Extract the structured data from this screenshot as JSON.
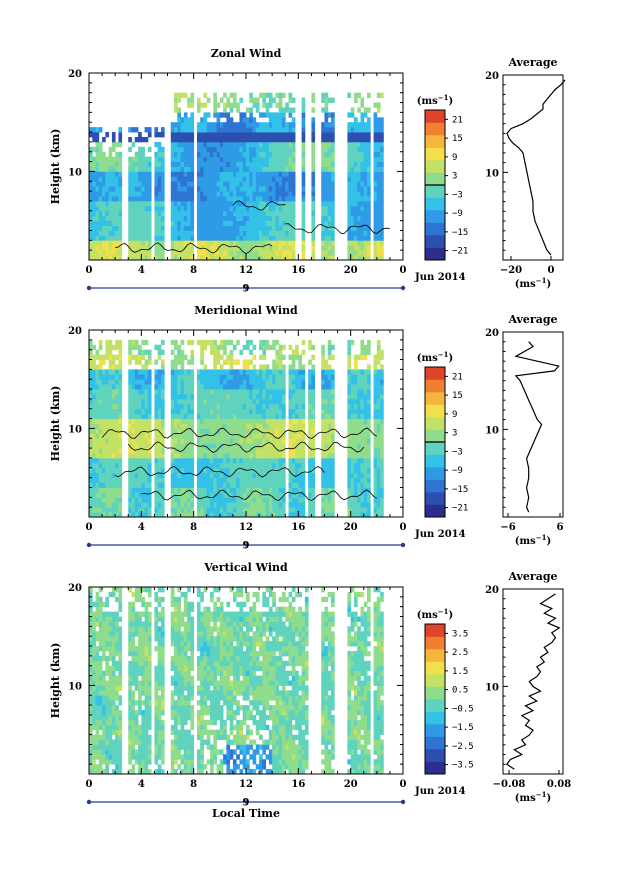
{
  "chart_data": [
    {
      "type": "heatmap",
      "title": "Zonal Wind",
      "ylabel": "Height (km)",
      "xlabel": "",
      "x_ticks": [
        "0",
        "4",
        "8",
        "12",
        "16",
        "20",
        "0"
      ],
      "y_ticks": [
        "10",
        "20"
      ],
      "ylim": [
        1,
        20
      ],
      "date_marker": "9",
      "date_label": "Jun 2014",
      "colorbar": {
        "unit_base": "(ms",
        "unit_exp": "−1",
        "ticks": [
          "21",
          "15",
          "9",
          "3",
          "−3",
          "−9",
          "−15",
          "−21"
        ],
        "range": [
          -24,
          24
        ]
      },
      "contour_value": 0,
      "average_profile": {
        "title": "Average",
        "xlim": [
          -24,
          6
        ],
        "x_ticks": [
          "−20",
          "0"
        ],
        "unit_base": "(ms",
        "unit_exp": "−1",
        "height_km": [
          1.5,
          2,
          3,
          4,
          5,
          6,
          7,
          8,
          9,
          10,
          11,
          12,
          12.5,
          13,
          13.5,
          14,
          14.5,
          15,
          15.5,
          16,
          16.5,
          17,
          17.5,
          18,
          18.5,
          19,
          19.5
        ],
        "values": [
          0,
          -2,
          -4,
          -6,
          -8,
          -9,
          -9,
          -10,
          -11,
          -12,
          -13,
          -14,
          -16,
          -19,
          -21,
          -22,
          -20,
          -14,
          -10,
          -7,
          -4,
          -4,
          -2,
          0,
          2,
          5,
          7
        ]
      }
    },
    {
      "type": "heatmap",
      "title": "Meridional Wind",
      "ylabel": "Height (km)",
      "xlabel": "",
      "x_ticks": [
        "0",
        "4",
        "8",
        "12",
        "16",
        "20",
        "0"
      ],
      "y_ticks": [
        "10",
        "20"
      ],
      "ylim": [
        1,
        20
      ],
      "date_marker": "9",
      "date_label": "Jun 2014",
      "colorbar": {
        "unit_base": "(ms",
        "unit_exp": "−1",
        "ticks": [
          "21",
          "15",
          "9",
          "3",
          "−3",
          "−9",
          "−15",
          "−21"
        ],
        "range": [
          -24,
          24
        ]
      },
      "contour_value": 0,
      "average_profile": {
        "title": "Average",
        "xlim": [
          -8,
          6
        ],
        "x_ticks": [
          "−6",
          "6"
        ],
        "unit_base": "(ms",
        "unit_exp": "−1",
        "height_km": [
          1.5,
          2,
          3,
          4,
          5,
          6,
          7,
          8,
          9,
          10,
          10.5,
          11,
          12,
          13,
          14,
          15,
          15.5,
          16,
          16.5,
          17,
          17.5,
          18,
          18.5,
          19
        ],
        "values": [
          -2,
          -2.5,
          -2,
          -2.5,
          -2,
          -2,
          -2.5,
          -1.5,
          -0.5,
          0.5,
          1,
          0,
          -1,
          -2,
          -3,
          -4,
          -5,
          4,
          5,
          0,
          -5,
          -3,
          -1,
          -2
        ]
      }
    },
    {
      "type": "heatmap",
      "title": "Vertical Wind",
      "ylabel": "Height (km)",
      "xlabel": "Local Time",
      "x_ticks": [
        "0",
        "4",
        "8",
        "12",
        "16",
        "20",
        "0"
      ],
      "y_ticks": [
        "10",
        "20"
      ],
      "ylim": [
        1,
        20
      ],
      "date_marker": "9",
      "date_label": "Jun 2014",
      "colorbar": {
        "unit_base": "(ms",
        "unit_exp": "−1",
        "ticks": [
          "3.5",
          "2.5",
          "1.5",
          "0.5",
          "−0.5",
          "−1.5",
          "−2.5",
          "−3.5"
        ],
        "range": [
          -4,
          4
        ]
      },
      "average_profile": {
        "title": "Average",
        "xlim": [
          -0.08,
          0.08
        ],
        "x_ticks": [
          "−0.08",
          "0.08"
        ],
        "unit_base": "(ms",
        "unit_exp": "−1",
        "height_km": [
          1.5,
          2,
          2.5,
          3,
          3.5,
          4,
          4.5,
          5,
          5.5,
          6,
          6.5,
          7,
          7.5,
          8,
          8.5,
          9,
          9.5,
          10,
          10.5,
          11,
          11.5,
          12,
          12.5,
          13,
          13.5,
          14,
          14.5,
          15,
          15.5,
          16,
          16.5,
          17,
          17.5,
          18,
          18.5,
          19,
          19.5
        ],
        "values": [
          -0.05,
          -0.07,
          -0.06,
          -0.03,
          -0.05,
          -0.02,
          -0.03,
          -0.01,
          0.0,
          -0.02,
          -0.01,
          -0.03,
          0.0,
          -0.02,
          0.01,
          -0.01,
          0.02,
          0.0,
          -0.01,
          0.01,
          0.02,
          0.01,
          0.03,
          0.02,
          0.04,
          0.03,
          0.05,
          0.06,
          0.05,
          0.07,
          0.04,
          0.06,
          0.03,
          0.05,
          0.02,
          0.04,
          0.06
        ]
      }
    }
  ]
}
